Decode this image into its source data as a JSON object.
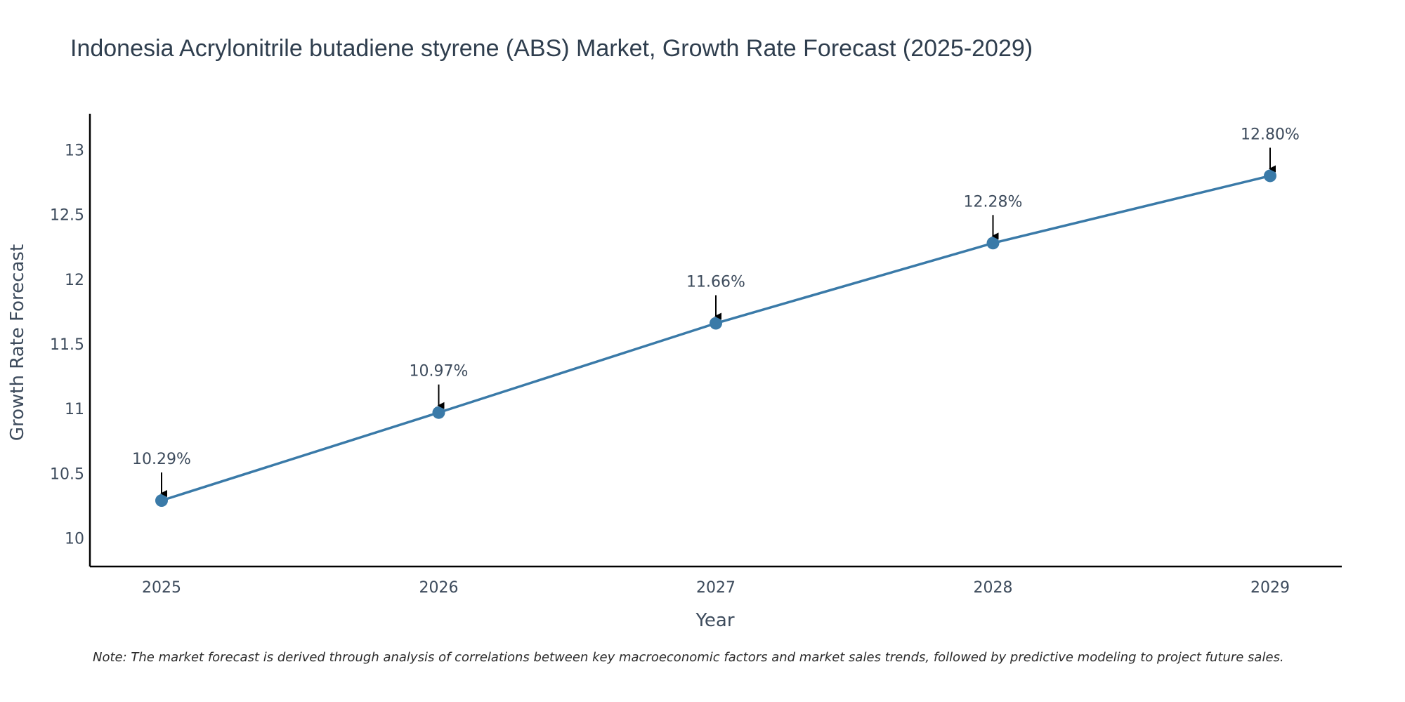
{
  "chart_data": {
    "type": "line",
    "title": "Indonesia Acrylonitrile butadiene styrene (ABS) Market, Growth Rate Forecast (2025-2029)",
    "xlabel": "Year",
    "ylabel": "Growth Rate Forecast",
    "categories": [
      "2025",
      "2026",
      "2027",
      "2028",
      "2029"
    ],
    "series": [
      {
        "name": "Growth Rate Forecast",
        "values": [
          10.29,
          10.97,
          11.66,
          12.28,
          12.8
        ],
        "labels": [
          "10.29%",
          "10.97%",
          "11.66%",
          "12.28%",
          "12.80%"
        ]
      }
    ],
    "ylim": [
      9.78,
      13.28
    ],
    "yticks": [
      10,
      10.5,
      11,
      11.5,
      12,
      12.5,
      13
    ],
    "ytick_labels": [
      "10",
      "10.5",
      "11",
      "11.5",
      "12",
      "12.5",
      "13"
    ],
    "grid": false,
    "line_color": "#3a7aa8",
    "axis_color": "#000000",
    "annotation_arrow_color": "#000000"
  },
  "note": "Note: The market forecast is derived through analysis of correlations between key macroeconomic factors and market sales trends, followed by predictive modeling to project future sales."
}
